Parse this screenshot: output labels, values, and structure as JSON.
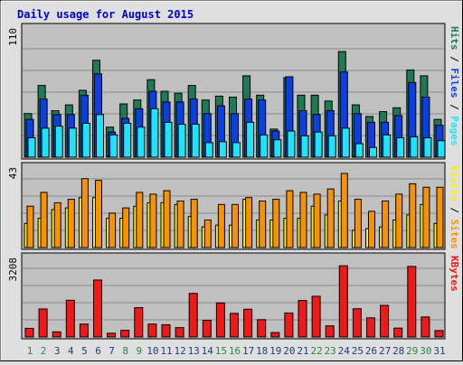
{
  "title": "Daily usage for August 2015",
  "colors": {
    "background": "#dfdfdf",
    "panel": "#c0c0c0",
    "grid": "#8a8a8a",
    "hits": "#1d7a55",
    "files": "#0b3fe0",
    "pages": "#1ee4fb",
    "visits": "#f9f101",
    "sites": "#f79208",
    "kbytes": "#ee1a1a",
    "weekday_label": "#1d3d7a",
    "weekend_label": "#228b44",
    "title": "#0000cc"
  },
  "chart_data": [
    {
      "type": "bar",
      "panel": "hits-files-pages",
      "categories": [
        "1",
        "2",
        "3",
        "4",
        "5",
        "6",
        "7",
        "8",
        "9",
        "10",
        "11",
        "12",
        "13",
        "14",
        "15",
        "16",
        "17",
        "18",
        "19",
        "20",
        "21",
        "22",
        "23",
        "24",
        "25",
        "26",
        "27",
        "28",
        "29",
        "30",
        "31"
      ],
      "ymax": 110,
      "ymax_label": "110",
      "legend": [
        "Pages",
        "Files",
        "Hits"
      ],
      "series": [
        {
          "name": "Hits",
          "values": [
            45,
            74,
            48,
            54,
            69,
            100,
            31,
            55,
            59,
            80,
            68,
            66,
            74,
            59,
            63,
            62,
            84,
            64,
            29,
            82,
            64,
            64,
            58,
            109,
            54,
            42,
            47,
            51,
            90,
            84,
            39
          ]
        },
        {
          "name": "Files",
          "values": [
            39,
            60,
            44,
            44,
            64,
            86,
            26,
            40,
            50,
            68,
            57,
            57,
            60,
            45,
            53,
            45,
            60,
            59,
            27,
            83,
            48,
            44,
            48,
            88,
            45,
            36,
            36,
            43,
            77,
            62,
            33
          ]
        },
        {
          "name": "Pages",
          "values": [
            20,
            30,
            32,
            30,
            35,
            44,
            23,
            35,
            31,
            50,
            36,
            34,
            34,
            15,
            16,
            15,
            36,
            23,
            18,
            27,
            22,
            26,
            22,
            30,
            14,
            10,
            23,
            20,
            21,
            20,
            17
          ]
        }
      ]
    },
    {
      "type": "bar",
      "panel": "visits-sites",
      "categories": [
        "1",
        "2",
        "3",
        "4",
        "5",
        "6",
        "7",
        "8",
        "9",
        "10",
        "11",
        "12",
        "13",
        "14",
        "15",
        "16",
        "17",
        "18",
        "19",
        "20",
        "21",
        "22",
        "23",
        "24",
        "25",
        "26",
        "27",
        "28",
        "29",
        "30",
        "31"
      ],
      "ymax": 43,
      "ymax_label": "43",
      "legend": [
        "Sites",
        "Visits"
      ],
      "series": [
        {
          "name": "Visits",
          "values": [
            14,
            17,
            22,
            23,
            29,
            29,
            17,
            17,
            24,
            26,
            26,
            25,
            18,
            12,
            13,
            13,
            28,
            16,
            16,
            17,
            17,
            24,
            19,
            27,
            10,
            11,
            12,
            16,
            19,
            25,
            14
          ]
        },
        {
          "name": "Sites",
          "values": [
            24,
            32,
            26,
            28,
            40,
            39,
            20,
            23,
            32,
            31,
            33,
            27,
            28,
            16,
            25,
            25,
            29,
            27,
            28,
            33,
            32,
            31,
            34,
            43,
            28,
            21,
            27,
            31,
            37,
            35,
            35
          ]
        }
      ]
    },
    {
      "type": "bar",
      "panel": "kbytes",
      "categories": [
        "1",
        "2",
        "3",
        "4",
        "5",
        "6",
        "7",
        "8",
        "9",
        "10",
        "11",
        "12",
        "13",
        "14",
        "15",
        "16",
        "17",
        "18",
        "19",
        "20",
        "21",
        "22",
        "23",
        "24",
        "25",
        "26",
        "27",
        "28",
        "29",
        "30",
        "31"
      ],
      "ymax": 3208,
      "ymax_label": "3208",
      "legend": [
        "KBytes"
      ],
      "series": [
        {
          "name": "KBytes",
          "values": [
            390,
            1260,
            230,
            1650,
            580,
            2560,
            170,
            300,
            1320,
            580,
            550,
            420,
            1960,
            750,
            1530,
            1060,
            1250,
            780,
            200,
            1080,
            1640,
            1830,
            500,
            3200,
            1270,
            860,
            1420,
            400,
            3170,
            900,
            290
          ]
        }
      ]
    }
  ]
}
